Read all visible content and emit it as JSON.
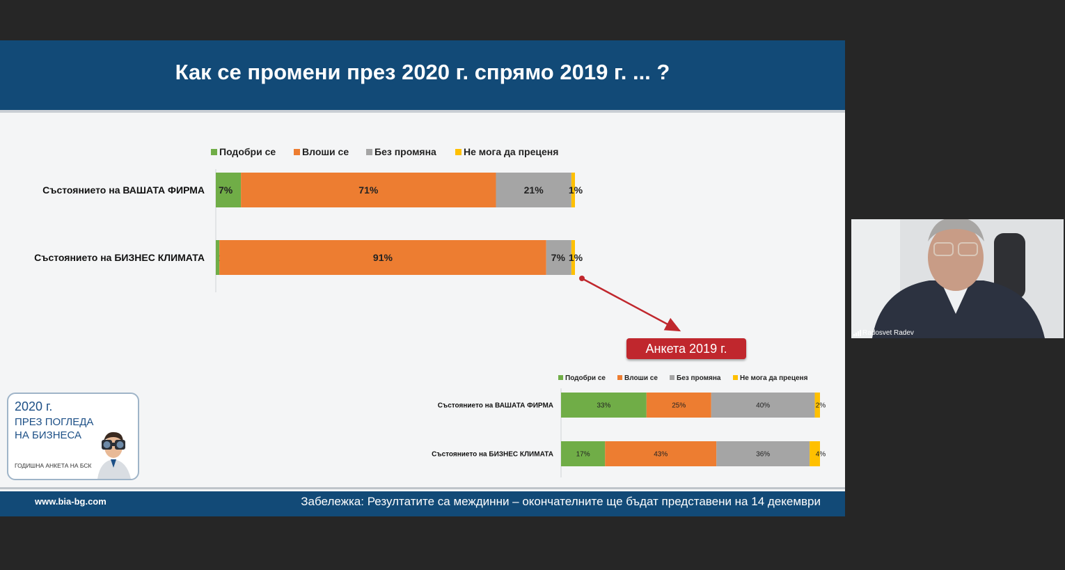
{
  "slide": {
    "title": "Как се промени през 2020 г. спрямо 2019 г. ... ?",
    "footer_url": "www.bia-bg.com",
    "footer_note": "Забележка: Резултатите са междинни – окончателните ще бъдат представени на 14 декември",
    "callout": "Анкета 2019 г.",
    "logo": {
      "year": "2020 г.",
      "line1": "ПРЕЗ ПОГЛЕДА",
      "line2": "НА БИЗНЕСА",
      "sub": "ГОДИШНА АНКЕТА НА БСК"
    }
  },
  "webcam": {
    "name": "Radosvet Radev"
  },
  "colors": {
    "improved": "#70ad47",
    "worsened": "#ed7d31",
    "unchanged": "#a5a5a5",
    "cannot_judge": "#ffc000",
    "header": "#124a77",
    "callout": "#c0272d"
  },
  "chart_data": [
    {
      "type": "bar",
      "orientation": "horizontal",
      "stacked": true,
      "legend": "top",
      "categories": [
        "Състоянието на ВАШАТА ФИРМА",
        "Състоянието на БИЗНЕС КЛИМАТА"
      ],
      "series": [
        {
          "name": "Подобри се",
          "values": [
            7,
            1
          ],
          "labels": [
            "7%",
            "1%"
          ]
        },
        {
          "name": "Влоши се",
          "values": [
            71,
            91
          ],
          "labels": [
            "71%",
            "91%"
          ]
        },
        {
          "name": "Без промяна",
          "values": [
            21,
            7
          ],
          "labels": [
            "21%",
            "7%"
          ]
        },
        {
          "name": "Не мога да преценя",
          "values": [
            1,
            1
          ],
          "labels": [
            "1%",
            "1%"
          ]
        }
      ]
    },
    {
      "type": "bar",
      "orientation": "horizontal",
      "stacked": true,
      "legend": "top",
      "categories": [
        "Състоянието на ВАШАТА ФИРМА",
        "Състоянието на БИЗНЕС КЛИМАТА"
      ],
      "series": [
        {
          "name": "Подобри се",
          "values": [
            33,
            17
          ],
          "labels": [
            "33%",
            "17%"
          ]
        },
        {
          "name": "Влоши се",
          "values": [
            25,
            43
          ],
          "labels": [
            "25%",
            "43%"
          ]
        },
        {
          "name": "Без промяна",
          "values": [
            40,
            36
          ],
          "labels": [
            "40%",
            "36%"
          ]
        },
        {
          "name": "Не мога да преценя",
          "values": [
            2,
            4
          ],
          "labels": [
            "2%",
            "4%"
          ]
        }
      ]
    }
  ]
}
